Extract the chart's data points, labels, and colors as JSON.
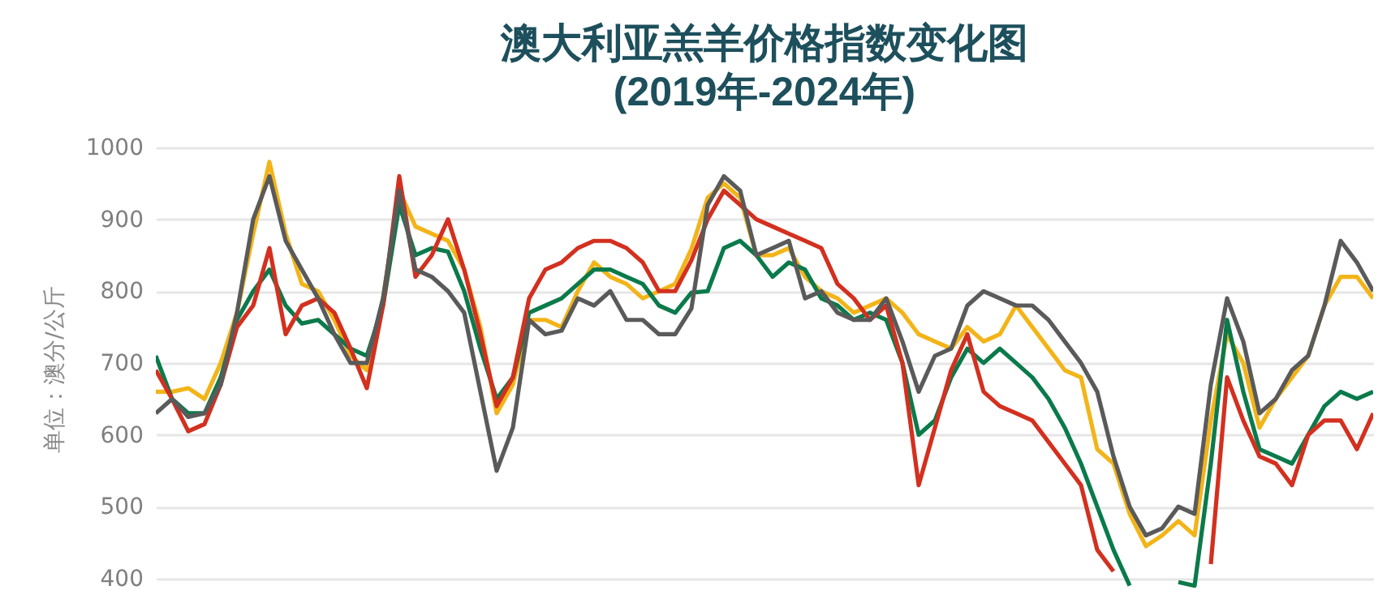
{
  "chart_data": {
    "type": "line",
    "title": "澳大利亚羔羊价格指数变化图\n(2019年-2024年)",
    "ylabel": "单位：澳分/公斤",
    "categories": [
      null,
      null,
      null,
      null,
      null,
      null,
      null,
      null,
      null,
      null,
      null,
      null,
      null,
      null,
      null,
      null,
      null,
      null,
      null,
      null,
      null,
      null,
      null,
      null,
      null,
      null,
      null,
      null,
      null,
      null,
      null,
      null,
      null,
      null,
      null,
      null,
      null,
      null,
      null,
      null,
      null,
      null,
      null,
      null,
      null,
      null,
      null,
      null,
      null,
      null,
      null,
      null,
      null,
      null,
      null,
      null,
      null,
      null,
      null,
      null,
      null,
      null,
      null,
      null,
      null,
      null,
      null,
      null,
      null,
      null,
      null,
      null,
      null,
      null,
      null,
      null
    ],
    "series": [
      {
        "color": "#f2b418",
        "values": [
          660,
          660,
          665,
          650,
          700,
          770,
          880,
          980,
          880,
          810,
          800,
          760,
          710,
          690,
          790,
          940,
          890,
          880,
          870,
          830,
          750,
          630,
          670,
          760,
          760,
          750,
          800,
          840,
          820,
          810,
          790,
          800,
          810,
          859,
          930,
          950,
          930,
          850,
          850,
          860,
          820,
          800,
          790,
          770,
          780,
          790,
          770,
          740,
          730,
          720,
          750,
          730,
          740,
          780,
          750,
          720,
          690,
          680,
          580,
          560,
          490,
          445,
          460,
          480,
          460,
          620,
          740,
          700,
          610,
          650,
          680,
          710,
          780,
          820,
          820,
          790
        ]
      },
      {
        "color": "#0b7a4b",
        "values": [
          710,
          650,
          630,
          630,
          680,
          760,
          800,
          830,
          780,
          755,
          760,
          740,
          720,
          710,
          780,
          920,
          850,
          860,
          855,
          800,
          720,
          650,
          680,
          770,
          780,
          790,
          810,
          830,
          830,
          820,
          810,
          780,
          770,
          798,
          800,
          860,
          870,
          850,
          820,
          840,
          830,
          790,
          780,
          760,
          770,
          760,
          700,
          600,
          620,
          680,
          720,
          700,
          720,
          700,
          680,
          650,
          610,
          560,
          500,
          440,
          390,
          null,
          null,
          395,
          390,
          560,
          760,
          660,
          580,
          570,
          560,
          600,
          640,
          660,
          650,
          660
        ]
      },
      {
        "color": "#d3301f",
        "values": [
          690,
          650,
          605,
          615,
          670,
          750,
          780,
          860,
          740,
          780,
          790,
          770,
          720,
          665,
          780,
          960,
          820,
          850,
          900,
          830,
          740,
          640,
          680,
          790,
          830,
          840,
          860,
          870,
          870,
          860,
          840,
          800,
          800,
          843,
          900,
          940,
          920,
          900,
          890,
          880,
          870,
          860,
          810,
          790,
          760,
          780,
          700,
          530,
          610,
          690,
          740,
          660,
          640,
          630,
          620,
          590,
          560,
          530,
          440,
          410,
          null,
          null,
          null,
          null,
          null,
          420,
          680,
          620,
          570,
          560,
          530,
          600,
          620,
          620,
          580,
          630
        ]
      },
      {
        "color": "#5a5a5a",
        "values": [
          630,
          650,
          625,
          630,
          670,
          770,
          900,
          960,
          870,
          830,
          790,
          740,
          700,
          700,
          790,
          940,
          830,
          820,
          800,
          770,
          660,
          550,
          610,
          760,
          740,
          745,
          790,
          780,
          800,
          760,
          760,
          740,
          740,
          776,
          920,
          960,
          940,
          850,
          860,
          870,
          790,
          800,
          770,
          760,
          760,
          790,
          730,
          660,
          710,
          720,
          780,
          800,
          790,
          780,
          780,
          760,
          730,
          700,
          660,
          570,
          500,
          460,
          470,
          500,
          490,
          670,
          790,
          730,
          630,
          650,
          690,
          710,
          780,
          870,
          840,
          800
        ]
      }
    ],
    "ylim": [
      384,
      1000
    ],
    "yticks": [
      400,
      500,
      600,
      700,
      800,
      900,
      1000
    ],
    "grid": "y",
    "tick_labels": "y"
  }
}
